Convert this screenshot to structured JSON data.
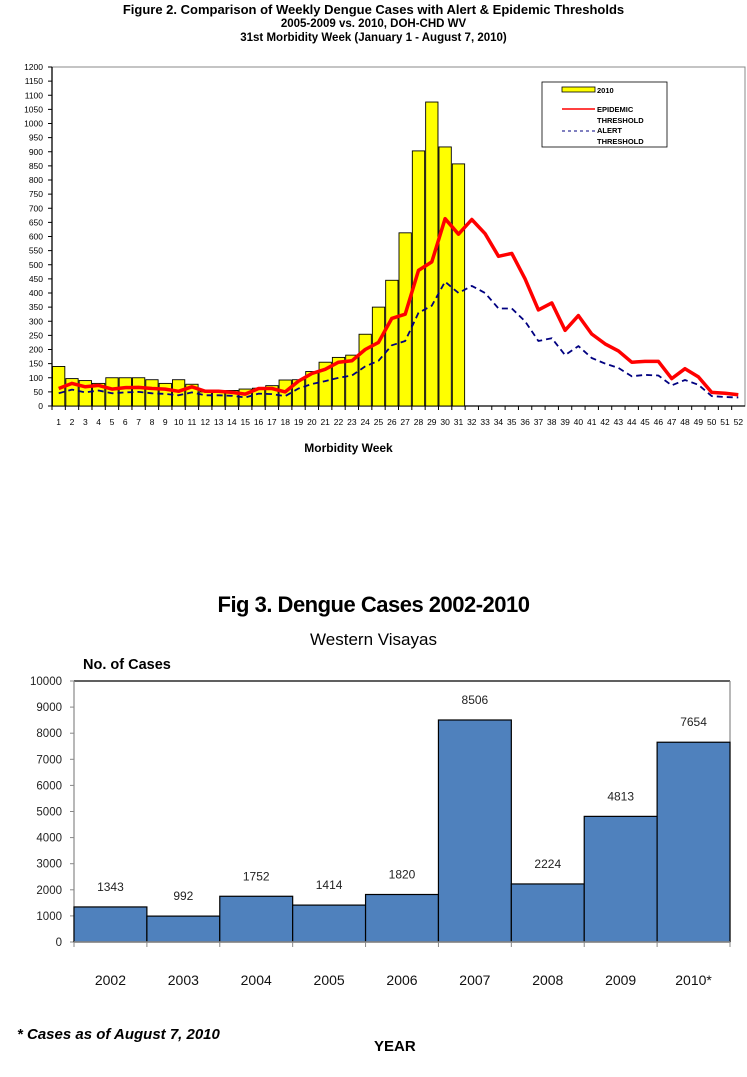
{
  "figure2": {
    "title": "Figure 2. Comparison of Weekly Dengue Cases with Alert & Epidemic Thresholds",
    "subtitle1": "2005-2009 vs. 2010, DOH-CHD WV",
    "subtitle2": "31st Morbidity Week (January 1 - August 7, 2010)"
  },
  "figure3": {
    "title": "Fig 3. Dengue Cases 2002-2010",
    "subtitle": "Western Visayas",
    "ylabel": "No. of Cases",
    "xlabel": "YEAR",
    "footnote": "* Cases as of August 7, 2010"
  },
  "chart_data": [
    {
      "type": "bar",
      "title": "Figure 2. Comparison of Weekly Dengue Cases with Alert & Epidemic Thresholds",
      "subtitle": "2005-2009 vs. 2010, DOH-CHD WV — 31st Morbidity Week (January 1 - August 7, 2010)",
      "xlabel": "Morbidity Week",
      "ylabel": "",
      "ylim": [
        0,
        1200
      ],
      "yticks": [
        0,
        50,
        100,
        150,
        200,
        250,
        300,
        350,
        400,
        450,
        500,
        550,
        600,
        650,
        700,
        750,
        800,
        850,
        900,
        950,
        1000,
        1050,
        1100,
        1150,
        1200
      ],
      "x": [
        1,
        2,
        3,
        4,
        5,
        6,
        7,
        8,
        9,
        10,
        11,
        12,
        13,
        14,
        15,
        16,
        17,
        18,
        19,
        20,
        21,
        22,
        23,
        24,
        25,
        26,
        27,
        28,
        29,
        30,
        31,
        32,
        33,
        34,
        35,
        36,
        37,
        38,
        39,
        40,
        41,
        42,
        43,
        44,
        45,
        46,
        47,
        48,
        49,
        50,
        51,
        52
      ],
      "grid": false,
      "legend": "top-right",
      "colors": {
        "bar": "#ffff00",
        "bar_edge": "#000000",
        "epidemic": "#ff0000",
        "alert": "#000080"
      },
      "series": [
        {
          "name": "2010",
          "kind": "bar",
          "values": [
            140,
            97,
            90,
            80,
            100,
            100,
            100,
            93,
            80,
            93,
            77,
            50,
            48,
            55,
            60,
            63,
            72,
            92,
            93,
            122,
            155,
            172,
            180,
            254,
            350,
            445,
            613,
            903,
            1076,
            917,
            857
          ]
        },
        {
          "name": "EPIDEMIC THRESHOLD",
          "kind": "line",
          "values": [
            62,
            80,
            68,
            73,
            60,
            65,
            66,
            62,
            60,
            52,
            68,
            52,
            52,
            48,
            42,
            62,
            62,
            50,
            88,
            115,
            130,
            155,
            160,
            200,
            225,
            310,
            325,
            480,
            510,
            663,
            608,
            660,
            610,
            530,
            540,
            450,
            340,
            365,
            268,
            320,
            255,
            220,
            195,
            155,
            158,
            158,
            97,
            132,
            103,
            48,
            45,
            40
          ]
        },
        {
          "name": "ALERT THRESHOLD",
          "kind": "dashed-line",
          "values": [
            45,
            58,
            48,
            55,
            45,
            48,
            50,
            45,
            43,
            38,
            48,
            38,
            38,
            36,
            30,
            44,
            42,
            35,
            62,
            78,
            88,
            100,
            108,
            140,
            160,
            215,
            230,
            330,
            355,
            440,
            400,
            425,
            400,
            345,
            345,
            300,
            230,
            240,
            180,
            212,
            170,
            150,
            135,
            105,
            110,
            108,
            73,
            92,
            75,
            35,
            32,
            30
          ]
        }
      ]
    },
    {
      "type": "bar",
      "title": "Fig 3. Dengue Cases 2002-2010",
      "subtitle": "Western Visayas",
      "xlabel": "YEAR",
      "ylabel": "No. of Cases",
      "ylim": [
        0,
        10000
      ],
      "yticks": [
        0,
        1000,
        2000,
        3000,
        4000,
        5000,
        6000,
        7000,
        8000,
        9000,
        10000
      ],
      "categories": [
        "2002",
        "2003",
        "2004",
        "2005",
        "2006",
        "2007",
        "2008",
        "2009",
        "2010*"
      ],
      "values": [
        1343,
        992,
        1752,
        1414,
        1820,
        8506,
        2224,
        4813,
        7654
      ],
      "data_labels": [
        "1343",
        "992",
        "1752",
        "1414",
        "1820",
        "8506",
        "2224",
        "4813",
        "7654"
      ],
      "grid": false,
      "colors": {
        "bar": "#4f81bd",
        "bar_edge": "#000000"
      }
    }
  ]
}
